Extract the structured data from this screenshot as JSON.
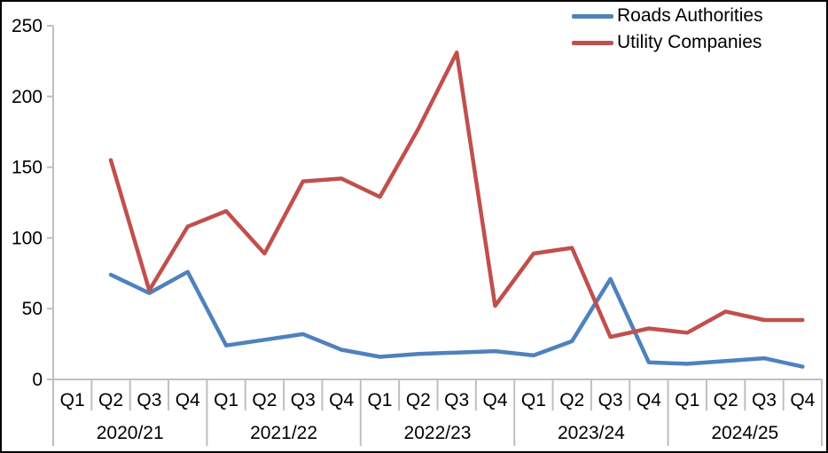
{
  "chart_data": {
    "type": "line",
    "title": "",
    "xlabel": "",
    "ylabel": "",
    "grid": false,
    "legend_position": "top-right",
    "background": "#FFFFFF",
    "axis_color": "#BFBFBF",
    "text_color": "#000000",
    "x_axis": {
      "years": [
        "2020/21",
        "2021/22",
        "2022/23",
        "2023/24",
        "2024/25"
      ],
      "quarters": [
        "Q1",
        "Q2",
        "Q3",
        "Q4"
      ]
    },
    "y_axis": {
      "min": 0,
      "max": 250,
      "step": 50,
      "ticks": [
        0,
        50,
        100,
        150,
        200,
        250
      ]
    },
    "series": [
      {
        "name": "Roads Authorities",
        "color": "#4F81BD",
        "values": [
          null,
          74,
          61,
          76,
          24,
          28,
          32,
          21,
          16,
          18,
          19,
          20,
          17,
          27,
          71,
          12,
          11,
          13,
          15,
          9
        ]
      },
      {
        "name": "Utility Companies",
        "color": "#C0504D",
        "values": [
          null,
          155,
          63,
          108,
          119,
          89,
          140,
          142,
          129,
          177,
          231,
          52,
          89,
          93,
          30,
          36,
          33,
          48,
          42,
          42
        ]
      }
    ]
  }
}
